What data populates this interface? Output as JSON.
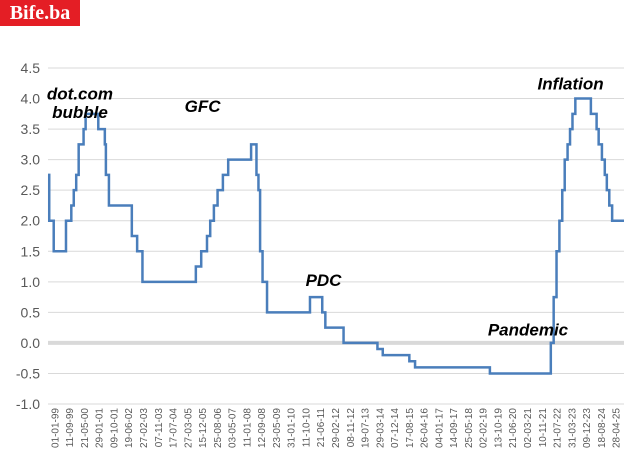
{
  "logo": "Bife.ba",
  "colors": {
    "logo_bg": "#e41e25",
    "line": "#4a7ebb",
    "grid": "#d9d9d9",
    "zero_line": "#d9d9d9"
  },
  "chart_data": {
    "type": "line",
    "title": "",
    "xlabel": "",
    "ylabel": "",
    "ylim": [
      -1.0,
      4.5
    ],
    "grid": true,
    "legend": "none",
    "y_ticks": [
      "4.5",
      "4.0",
      "3.5",
      "3.0",
      "2.5",
      "2.0",
      "1.5",
      "1.0",
      "0.5",
      "0.0",
      "-0.5",
      "-1.0"
    ],
    "x_ticks": [
      "01-01-99",
      "11-09-99",
      "21-05-00",
      "29-01-01",
      "09-10-01",
      "19-06-02",
      "27-02-03",
      "07-11-03",
      "17-07-04",
      "27-03-05",
      "15-12-05",
      "25-08-06",
      "03-05-07",
      "11-01-08",
      "12-09-08",
      "23-05-09",
      "31-01-10",
      "11-10-10",
      "21-06-11",
      "29-02-12",
      "08-11-12",
      "19-07-13",
      "29-03-14",
      "07-12-14",
      "17-08-15",
      "26-04-16",
      "04-01-17",
      "14-09-17",
      "25-05-18",
      "02-02-19",
      "13-10-19",
      "21-06-20",
      "02-03-21",
      "10-11-21",
      "21-07-22",
      "31-03-23",
      "09-12-23",
      "18-08-24",
      "28-04-25"
    ],
    "annotations": [
      {
        "text": "dot.com",
        "date": "2000-07-01",
        "y": 4.08
      },
      {
        "text": "bubble",
        "date": "2000-07-01",
        "y": 3.78
      },
      {
        "text": "GFC",
        "date": "2006-04-01",
        "y": 3.88
      },
      {
        "text": "PDC",
        "date": "2011-12-01",
        "y": 1.03
      },
      {
        "text": "Pandemic",
        "date": "2021-07-01",
        "y": 0.22
      },
      {
        "text": "Inflation",
        "date": "2023-07-01",
        "y": 4.25
      }
    ],
    "series": [
      {
        "name": "",
        "step": true,
        "points": [
          [
            "1999-01-01",
            2.75
          ],
          [
            "1999-01-22",
            2.0
          ],
          [
            "1999-04-09",
            1.5
          ],
          [
            "1999-11-05",
            2.0
          ],
          [
            "2000-02-04",
            2.25
          ],
          [
            "2000-03-17",
            2.5
          ],
          [
            "2000-04-28",
            2.75
          ],
          [
            "2000-06-09",
            3.25
          ],
          [
            "2000-09-01",
            3.5
          ],
          [
            "2000-10-06",
            3.75
          ],
          [
            "2001-05-11",
            3.5
          ],
          [
            "2001-08-31",
            3.25
          ],
          [
            "2001-09-18",
            2.75
          ],
          [
            "2001-11-09",
            2.25
          ],
          [
            "2002-12-06",
            1.75
          ],
          [
            "2003-03-07",
            1.5
          ],
          [
            "2003-06-06",
            1.0
          ],
          [
            "2005-12-06",
            1.25
          ],
          [
            "2006-03-08",
            1.5
          ],
          [
            "2006-06-15",
            1.75
          ],
          [
            "2006-08-09",
            2.0
          ],
          [
            "2006-10-11",
            2.25
          ],
          [
            "2006-12-13",
            2.5
          ],
          [
            "2007-03-14",
            2.75
          ],
          [
            "2007-06-13",
            3.0
          ],
          [
            "2008-07-09",
            3.25
          ],
          [
            "2008-10-09",
            2.75
          ],
          [
            "2008-11-12",
            2.5
          ],
          [
            "2008-12-10",
            1.5
          ],
          [
            "2009-01-21",
            1.0
          ],
          [
            "2009-04-08",
            0.5
          ],
          [
            "2011-04-13",
            0.75
          ],
          [
            "2011-11-09",
            0.5
          ],
          [
            "2012-01-01",
            0.25
          ],
          [
            "2012-11-08",
            0.0
          ],
          [
            "2014-06-11",
            -0.1
          ],
          [
            "2014-09-10",
            -0.2
          ],
          [
            "2015-12-09",
            -0.3
          ],
          [
            "2016-03-16",
            -0.4
          ],
          [
            "2019-09-18",
            -0.5
          ],
          [
            "2022-07-27",
            0.0
          ],
          [
            "2022-09-14",
            0.75
          ],
          [
            "2022-11-02",
            1.5
          ],
          [
            "2022-12-21",
            2.0
          ],
          [
            "2023-02-08",
            2.5
          ],
          [
            "2023-03-22",
            3.0
          ],
          [
            "2023-05-10",
            3.25
          ],
          [
            "2023-06-21",
            3.5
          ],
          [
            "2023-08-02",
            3.75
          ],
          [
            "2023-09-20",
            4.0
          ],
          [
            "2024-06-12",
            3.75
          ],
          [
            "2024-09-18",
            3.5
          ],
          [
            "2024-10-23",
            3.25
          ],
          [
            "2024-12-18",
            3.0
          ],
          [
            "2025-02-05",
            2.75
          ],
          [
            "2025-03-12",
            2.5
          ],
          [
            "2025-04-23",
            2.25
          ],
          [
            "2025-06-11",
            2.0
          ],
          [
            "2025-12-31",
            2.0
          ]
        ]
      }
    ]
  }
}
